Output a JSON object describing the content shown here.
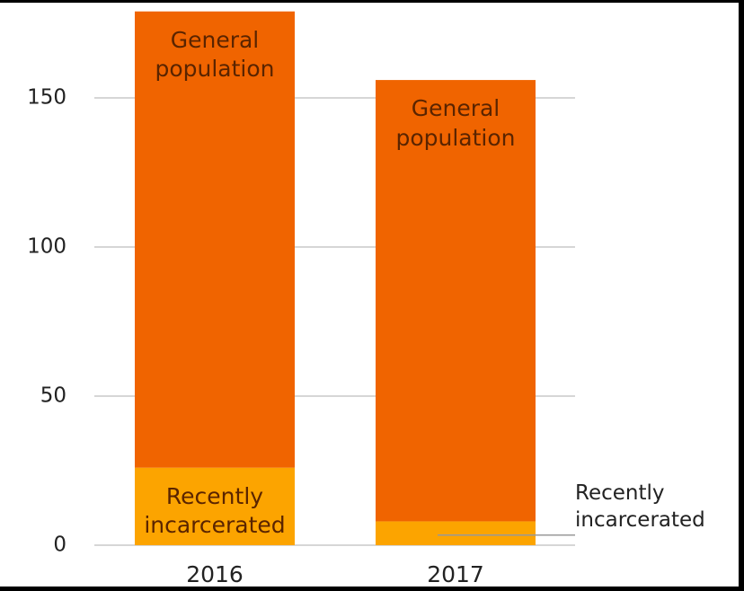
{
  "chart_data": {
    "type": "stacked_bar",
    "categories": [
      "2016",
      "2017"
    ],
    "series": [
      {
        "name": "Recently incarcerated",
        "color": "#fca400",
        "values": [
          26,
          8
        ]
      },
      {
        "name": "General population",
        "color": "#f06400",
        "values": [
          153,
          148
        ]
      }
    ],
    "ylim": [
      0,
      180
    ],
    "yticks": [
      0,
      50,
      100,
      150
    ],
    "grid": true
  }
}
